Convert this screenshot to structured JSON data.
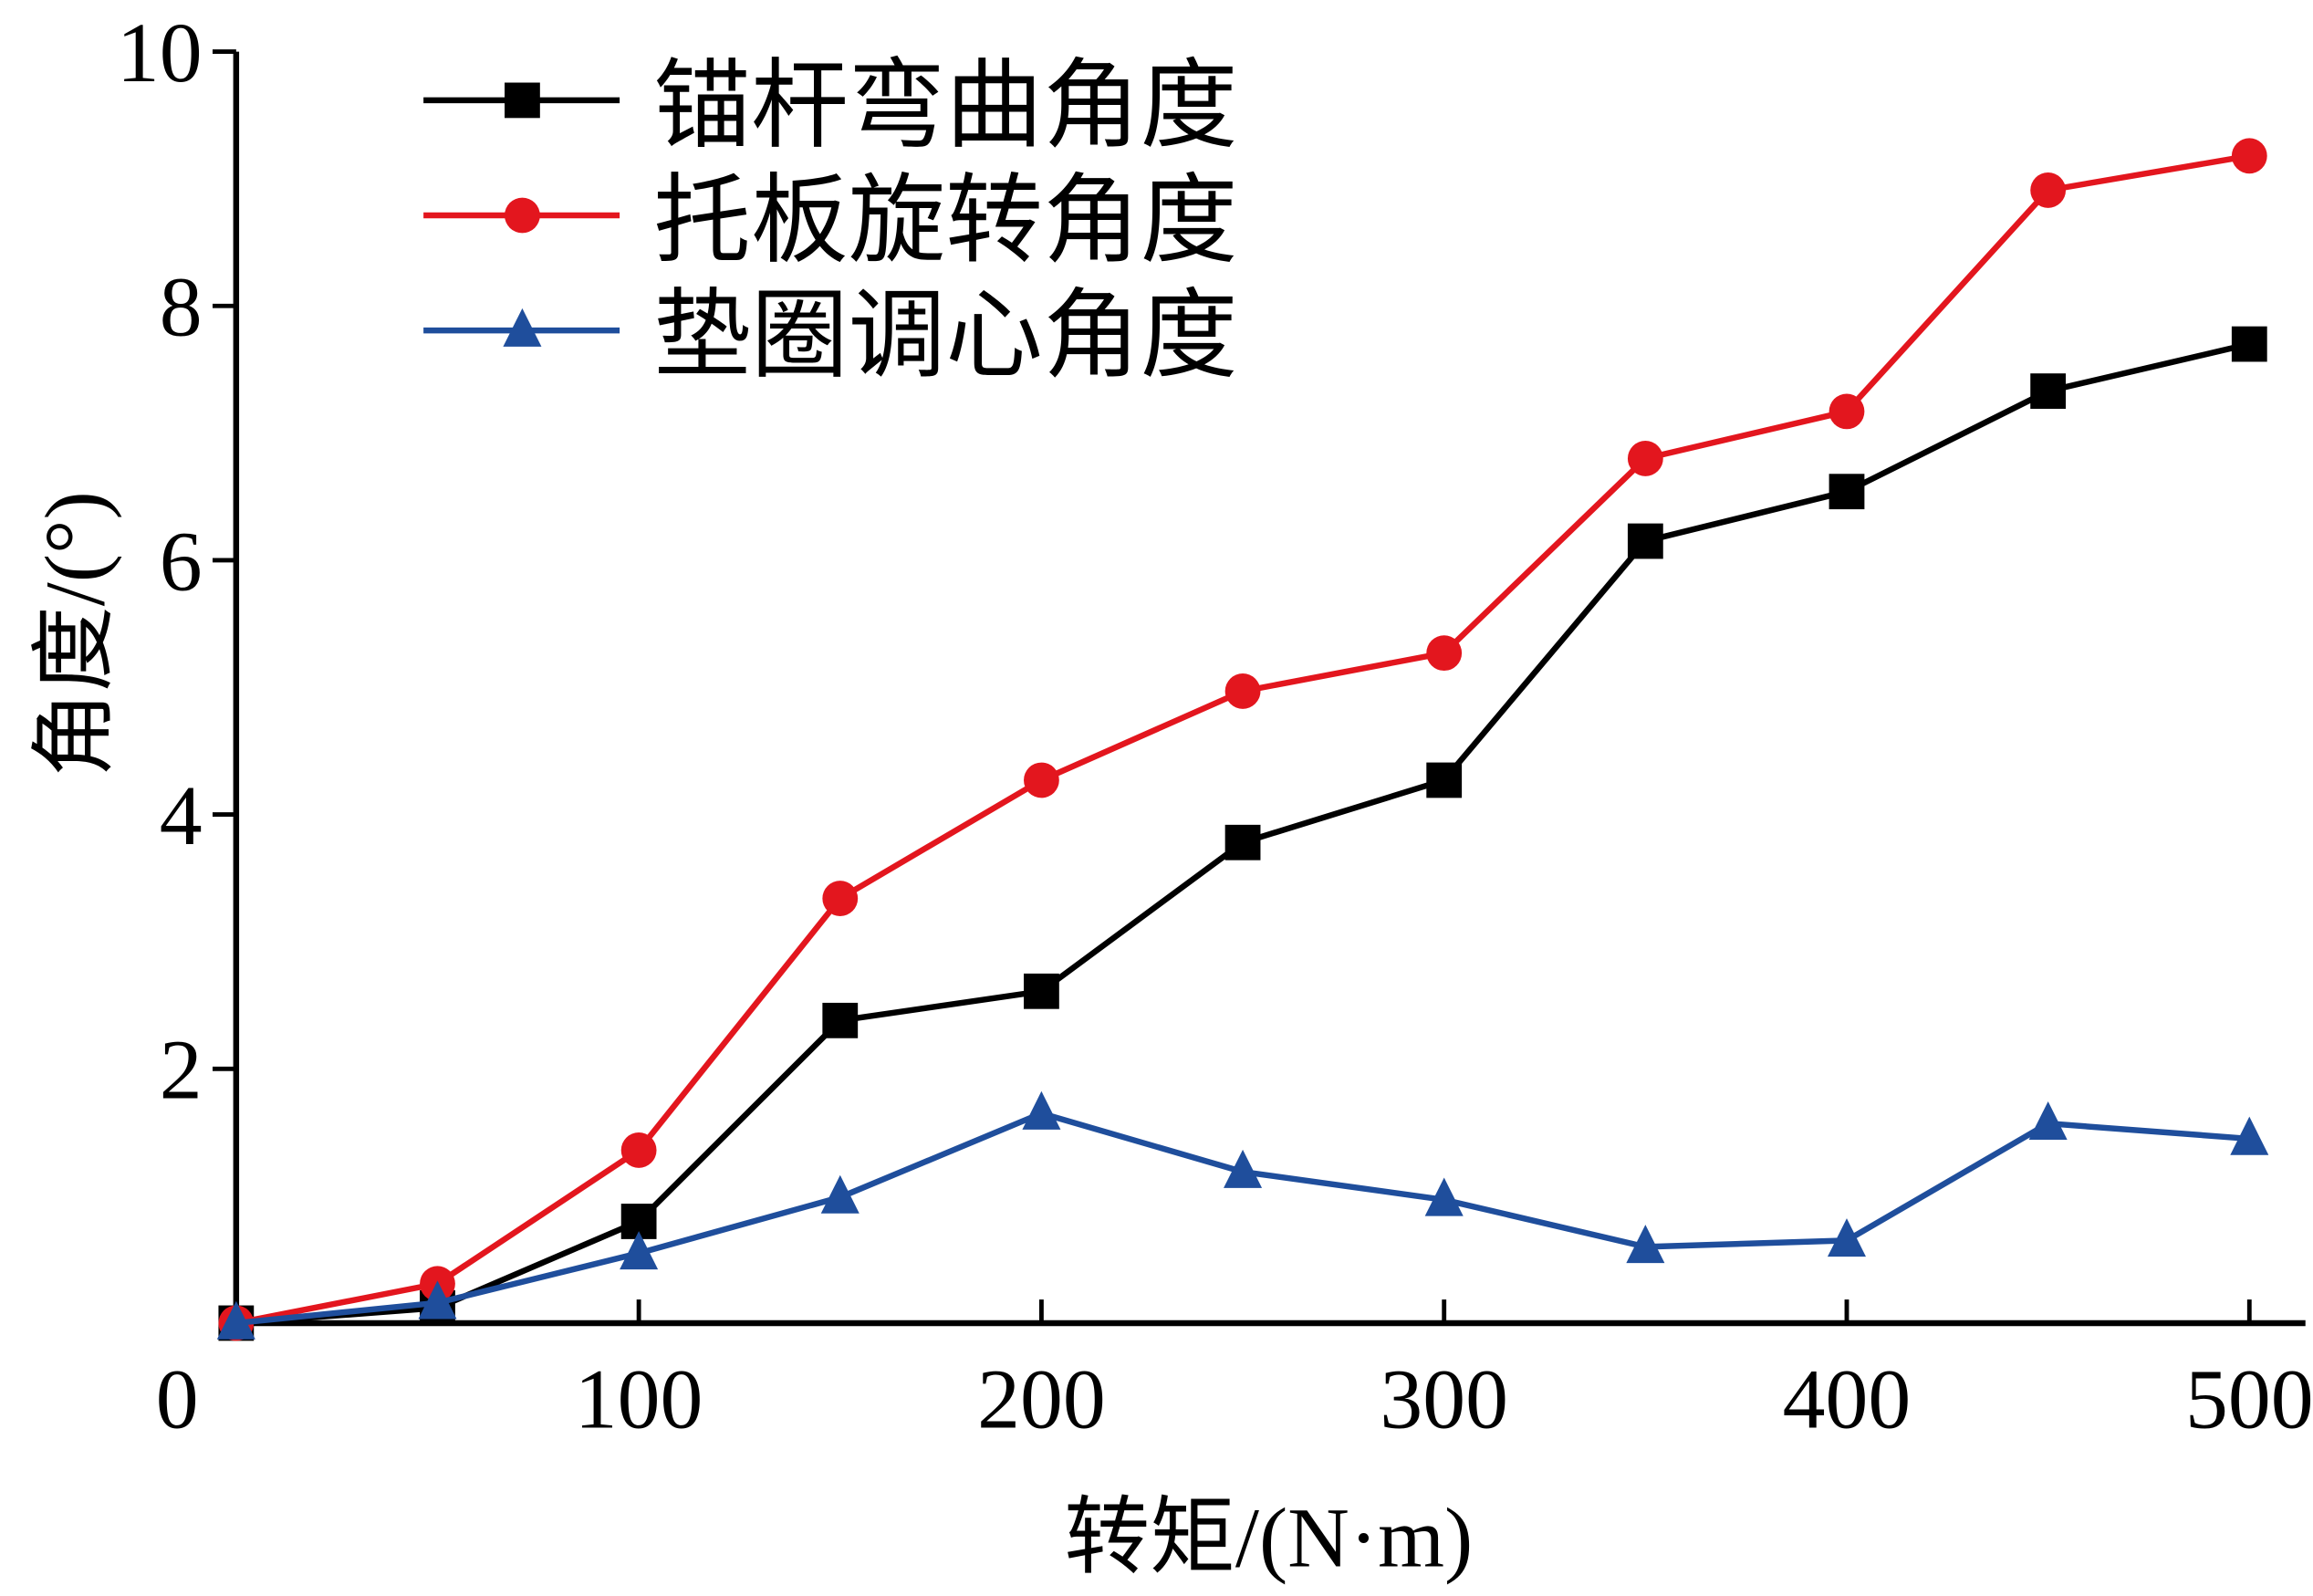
{
  "chart_data": {
    "type": "line",
    "title": "",
    "xlabel": "转矩/(N·m)",
    "ylabel": "角度/(°)",
    "xlim": [
      0,
      500
    ],
    "ylim": [
      0,
      10
    ],
    "xticks": [
      0,
      100,
      200,
      300,
      400,
      500
    ],
    "xtick_labels": [
      "0",
      "100",
      "200",
      "300",
      "400",
      "500"
    ],
    "yticks": [
      2,
      4,
      6,
      8,
      10
    ],
    "ytick_labels": [
      "2",
      "4",
      "6",
      "8",
      "10"
    ],
    "grid": false,
    "legend_position": "top-left",
    "x": [
      0,
      50,
      100,
      150,
      200,
      250,
      300,
      350,
      400,
      450,
      500
    ],
    "series": [
      {
        "name": "锚杆弯曲角度",
        "color": "#000000",
        "marker": "square",
        "values": [
          0,
          0.12,
          0.8,
          2.38,
          2.61,
          3.78,
          4.27,
          6.15,
          6.54,
          7.33,
          7.7
        ]
      },
      {
        "name": "托板旋转角度",
        "color": "#e3161e",
        "marker": "circle",
        "values": [
          0,
          0.31,
          1.36,
          3.34,
          4.27,
          4.97,
          5.27,
          6.8,
          7.17,
          8.91,
          9.18
        ]
      },
      {
        "name": "垫圈调心角度",
        "color": "#1f4e9c",
        "marker": "triangle",
        "values": [
          0,
          0.16,
          0.55,
          0.99,
          1.65,
          1.19,
          0.97,
          0.6,
          0.65,
          1.57,
          1.45
        ]
      }
    ]
  }
}
